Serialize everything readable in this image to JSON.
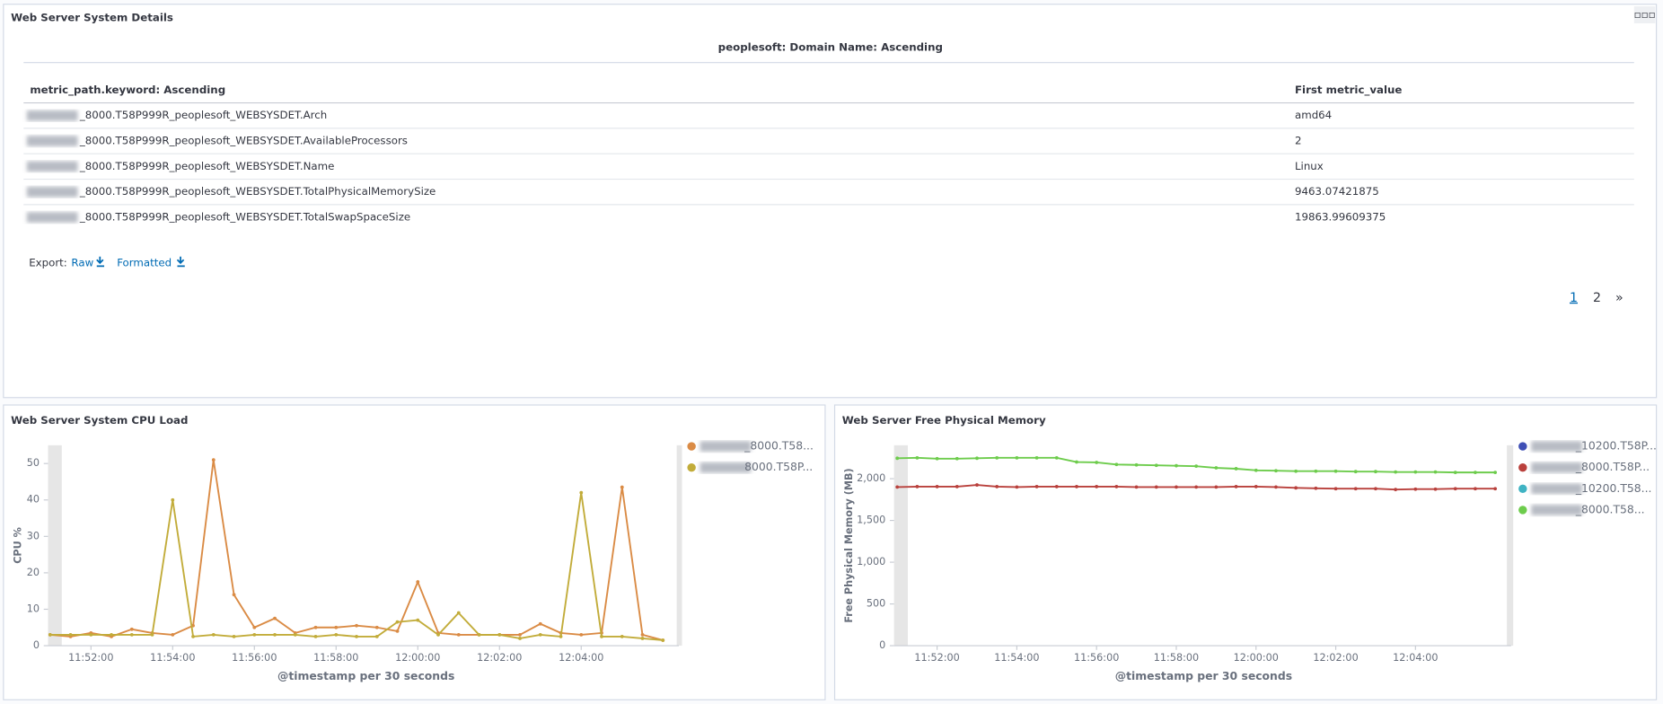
{
  "details": {
    "title": "Web Server System Details",
    "split_label": "peoplesoft: Domain Name: Ascending",
    "columns": [
      "metric_path.keyword: Ascending",
      "First metric_value"
    ],
    "rows": [
      [
        "_8000.T58P999R_peoplesoft_WEBSYSDET.Arch",
        "amd64"
      ],
      [
        "_8000.T58P999R_peoplesoft_WEBSYSDET.AvailableProcessors",
        2
      ],
      [
        "_8000.T58P999R_peoplesoft_WEBSYSDET.Name",
        "Linux"
      ],
      [
        "_8000.T58P999R_peoplesoft_WEBSYSDET.TotalPhysicalMemorySize",
        9463.07421875
      ],
      [
        "_8000.T58P999R_peoplesoft_WEBSYSDET.TotalSwapSpaceSize",
        19863.99609375
      ]
    ],
    "export": {
      "label": "Export:",
      "raw": "Raw",
      "formatted": "Formatted"
    },
    "pagination": [
      "1",
      "2",
      "»"
    ]
  },
  "cpu_chart": {
    "type": "line",
    "title": "Web Server System CPU Load",
    "x_label": "@timestamp per 30 seconds",
    "y_label": "CPU %",
    "categories": [
      null,
      null,
      "11:52:00",
      null,
      null,
      null,
      "11:54:00",
      null,
      null,
      null,
      "11:56:00",
      null,
      null,
      null,
      "11:58:00",
      null,
      null,
      null,
      "12:00:00",
      null,
      null,
      null,
      "12:02:00",
      null,
      null,
      null,
      "12:04:00",
      null,
      null,
      null,
      null
    ],
    "series": [
      {
        "name": "_8000.T58...",
        "color": "#da8b45",
        "values": [
          3,
          2.5,
          3.5,
          2.5,
          4.5,
          3.5,
          3,
          5.5,
          51,
          14,
          5,
          7.5,
          3.5,
          5,
          5,
          5.5,
          5,
          4,
          17.5,
          3.5,
          3,
          3,
          3,
          3,
          6,
          3.5,
          3,
          3.5,
          43.5,
          3,
          1.5
        ]
      },
      {
        "name": "8000.T58P...",
        "color": "#c2ac3a",
        "values": [
          3,
          3,
          3,
          3,
          3,
          3,
          40,
          2.5,
          3,
          2.5,
          3,
          3,
          3,
          2.5,
          3,
          2.5,
          2.5,
          6.5,
          7,
          3,
          9,
          3,
          3,
          2,
          3,
          2.5,
          42,
          2.5,
          2.5,
          2,
          1.5
        ]
      }
    ],
    "ylim": [
      0,
      55
    ],
    "yticks": [
      0,
      10,
      20,
      30,
      40,
      50
    ]
  },
  "memory_chart": {
    "type": "line",
    "title": "Web Server Free Physical Memory",
    "x_label": "@timestamp per 30 seconds",
    "y_label": "Free Physical Memory (MB)",
    "categories": [
      null,
      null,
      "11:52:00",
      null,
      null,
      null,
      "11:54:00",
      null,
      null,
      null,
      "11:56:00",
      null,
      null,
      null,
      "11:58:00",
      null,
      null,
      null,
      "12:00:00",
      null,
      null,
      null,
      "12:02:00",
      null,
      null,
      null,
      "12:04:00",
      null,
      null,
      null,
      null
    ],
    "series": [
      {
        "name": "_10200.T58P...",
        "color": "#3f4fb5",
        "values": [
          null,
          null,
          null,
          null,
          null,
          null,
          null,
          null,
          null,
          null,
          null,
          null,
          null,
          null,
          null,
          null,
          null,
          null,
          null,
          null,
          null,
          null,
          null,
          null,
          null,
          null,
          null,
          null,
          null,
          null,
          null
        ]
      },
      {
        "name": "_8000.T58P...",
        "color": "#b9403c",
        "values": [
          1900,
          1905,
          1905,
          1905,
          1925,
          1905,
          1900,
          1905,
          1905,
          1905,
          1905,
          1905,
          1900,
          1900,
          1900,
          1900,
          1900,
          1905,
          1905,
          1900,
          1890,
          1885,
          1880,
          1880,
          1880,
          1870,
          1875,
          1875,
          1880,
          1880,
          1880
        ]
      },
      {
        "name": "_10200.T58...",
        "color": "#3fb3c3",
        "values": [
          null,
          null,
          null,
          null,
          null,
          null,
          null,
          null,
          null,
          null,
          null,
          null,
          null,
          null,
          null,
          null,
          null,
          null,
          null,
          null,
          null,
          null,
          null,
          null,
          null,
          null,
          null,
          null,
          null,
          null,
          null
        ]
      },
      {
        "name": "_8000.T58...",
        "color": "#6dcc4c",
        "values": [
          2245,
          2250,
          2240,
          2240,
          2245,
          2250,
          2250,
          2250,
          2250,
          2200,
          2195,
          2170,
          2165,
          2160,
          2155,
          2150,
          2130,
          2120,
          2100,
          2095,
          2090,
          2090,
          2090,
          2085,
          2085,
          2080,
          2080,
          2080,
          2075,
          2075,
          2075
        ]
      }
    ],
    "ylim": [
      0,
      2400
    ],
    "yticks": [
      0,
      500,
      {
        "value": 1000,
        "label": "1,000"
      },
      {
        "value": 1500,
        "label": "1,500"
      },
      {
        "value": 2000,
        "label": "2,000"
      }
    ]
  }
}
